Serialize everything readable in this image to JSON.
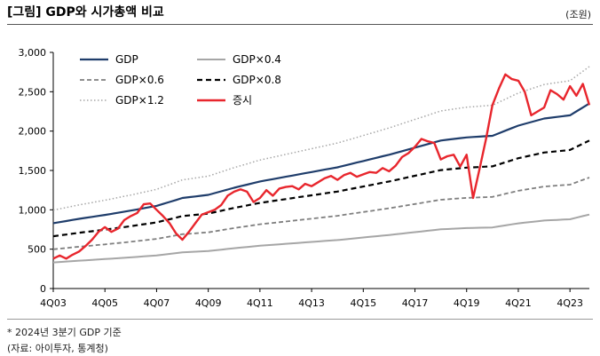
{
  "header": {
    "title": "[그림] GDP와 시가총액 비교",
    "unit": "(조원)"
  },
  "footnotes": {
    "note": "* 2024년 3분기 GDP 기준",
    "source": "(자료: 아이투자, 통계청)"
  },
  "colors": {
    "gdp": "#1f3d6b",
    "gdp04": "#a6a6a6",
    "gdp06": "#7f7f7f",
    "gdp08": "#000000",
    "gdp12": "#a6a6a6",
    "market": "#e8262d"
  },
  "chart_data": {
    "type": "line",
    "xlabel": "",
    "ylabel": "",
    "x_ticks": [
      "4Q03",
      "4Q05",
      "4Q07",
      "4Q09",
      "4Q11",
      "4Q13",
      "4Q15",
      "4Q17",
      "4Q19",
      "4Q21",
      "4Q23"
    ],
    "y_ticks": [
      "0",
      "500",
      "1,000",
      "1,500",
      "2,000",
      "2,500",
      "3,000"
    ],
    "ylim": [
      0,
      3000
    ],
    "grid": false,
    "legend_position": "top-left",
    "gdp_anchors": [
      [
        "4Q03",
        830
      ],
      [
        "4Q04",
        885
      ],
      [
        "4Q05",
        935
      ],
      [
        "4Q06",
        990
      ],
      [
        "4Q07",
        1050
      ],
      [
        "4Q08",
        1150
      ],
      [
        "4Q09",
        1190
      ],
      [
        "4Q10",
        1280
      ],
      [
        "4Q11",
        1360
      ],
      [
        "4Q12",
        1420
      ],
      [
        "4Q13",
        1480
      ],
      [
        "4Q14",
        1540
      ],
      [
        "4Q15",
        1620
      ],
      [
        "4Q16",
        1700
      ],
      [
        "4Q17",
        1790
      ],
      [
        "4Q18",
        1880
      ],
      [
        "4Q19",
        1920
      ],
      [
        "4Q20",
        1940
      ],
      [
        "4Q21",
        2070
      ],
      [
        "4Q22",
        2160
      ],
      [
        "4Q23",
        2200
      ],
      [
        "3Q24",
        2350
      ]
    ],
    "series": [
      {
        "name": "GDP",
        "multiplier": 1.0,
        "style": "solid"
      },
      {
        "name": "GDP×0.4",
        "multiplier": 0.4,
        "style": "solid"
      },
      {
        "name": "GDP×0.6",
        "multiplier": 0.6,
        "style": "dash"
      },
      {
        "name": "GDP×0.8",
        "multiplier": 0.8,
        "style": "dash-bold"
      },
      {
        "name": "GDP×1.2",
        "multiplier": 1.2,
        "style": "dot"
      },
      {
        "name": "증시",
        "style": "solid-red",
        "values": [
          [
            "4Q03",
            380
          ],
          [
            "1Q04",
            420
          ],
          [
            "2Q04",
            380
          ],
          [
            "3Q04",
            430
          ],
          [
            "4Q04",
            470
          ],
          [
            "1Q05",
            540
          ],
          [
            "2Q05",
            620
          ],
          [
            "3Q05",
            720
          ],
          [
            "4Q05",
            780
          ],
          [
            "1Q06",
            720
          ],
          [
            "2Q06",
            760
          ],
          [
            "3Q06",
            870
          ],
          [
            "4Q06",
            920
          ],
          [
            "1Q07",
            960
          ],
          [
            "2Q07",
            1070
          ],
          [
            "3Q07",
            1080
          ],
          [
            "4Q07",
            1000
          ],
          [
            "1Q08",
            920
          ],
          [
            "2Q08",
            830
          ],
          [
            "3Q08",
            700
          ],
          [
            "4Q08",
            620
          ],
          [
            "1Q09",
            720
          ],
          [
            "2Q09",
            830
          ],
          [
            "3Q09",
            940
          ],
          [
            "4Q09",
            970
          ],
          [
            "1Q10",
            1000
          ],
          [
            "2Q10",
            1060
          ],
          [
            "3Q10",
            1180
          ],
          [
            "4Q10",
            1230
          ],
          [
            "1Q11",
            1260
          ],
          [
            "2Q11",
            1230
          ],
          [
            "3Q11",
            1100
          ],
          [
            "4Q11",
            1150
          ],
          [
            "1Q12",
            1250
          ],
          [
            "2Q12",
            1180
          ],
          [
            "3Q12",
            1270
          ],
          [
            "4Q12",
            1290
          ],
          [
            "1Q13",
            1300
          ],
          [
            "2Q13",
            1260
          ],
          [
            "3Q13",
            1330
          ],
          [
            "4Q13",
            1300
          ],
          [
            "1Q14",
            1350
          ],
          [
            "2Q14",
            1400
          ],
          [
            "3Q14",
            1430
          ],
          [
            "4Q14",
            1380
          ],
          [
            "1Q15",
            1440
          ],
          [
            "2Q15",
            1470
          ],
          [
            "3Q15",
            1420
          ],
          [
            "4Q15",
            1450
          ],
          [
            "1Q16",
            1480
          ],
          [
            "2Q16",
            1470
          ],
          [
            "3Q16",
            1530
          ],
          [
            "4Q16",
            1490
          ],
          [
            "1Q17",
            1560
          ],
          [
            "2Q17",
            1670
          ],
          [
            "3Q17",
            1720
          ],
          [
            "4Q17",
            1800
          ],
          [
            "1Q18",
            1900
          ],
          [
            "2Q18",
            1870
          ],
          [
            "3Q18",
            1850
          ],
          [
            "4Q18",
            1640
          ],
          [
            "1Q19",
            1680
          ],
          [
            "2Q19",
            1700
          ],
          [
            "3Q19",
            1550
          ],
          [
            "4Q19",
            1700
          ],
          [
            "1Q20",
            1150
          ],
          [
            "2Q20",
            1520
          ],
          [
            "3Q20",
            1900
          ],
          [
            "4Q20",
            2330
          ],
          [
            "1Q21",
            2540
          ],
          [
            "2Q21",
            2720
          ],
          [
            "3Q21",
            2660
          ],
          [
            "4Q21",
            2640
          ],
          [
            "1Q22",
            2500
          ],
          [
            "2Q22",
            2200
          ],
          [
            "3Q22",
            2250
          ],
          [
            "4Q22",
            2300
          ],
          [
            "1Q23",
            2520
          ],
          [
            "2Q23",
            2470
          ],
          [
            "3Q23",
            2400
          ],
          [
            "4Q23",
            2570
          ],
          [
            "1Q24",
            2450
          ],
          [
            "2Q24",
            2600
          ],
          [
            "3Q24",
            2330
          ]
        ]
      }
    ]
  }
}
